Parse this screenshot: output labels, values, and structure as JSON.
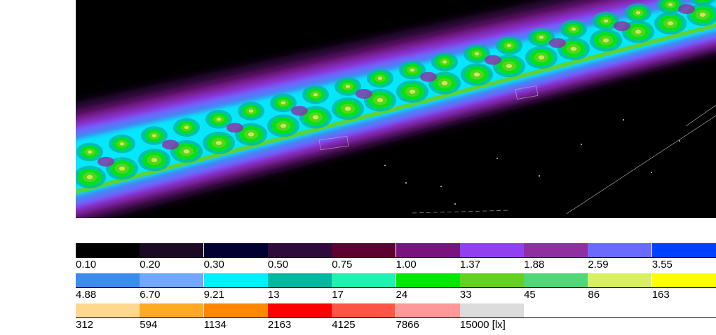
{
  "colors": {
    "background": "#000000",
    "page": "#ffffff"
  },
  "chart_data": {
    "type": "heatmap",
    "title": "",
    "unit": "lx",
    "legend": [
      {
        "label": "0.10",
        "value": 0.1,
        "color": "#000000"
      },
      {
        "label": "0.20",
        "value": 0.2,
        "color": "#1c0a24"
      },
      {
        "label": "0.30",
        "value": 0.3,
        "color": "#000030"
      },
      {
        "label": "0.50",
        "value": 0.5,
        "color": "#2f0a3c"
      },
      {
        "label": "0.75",
        "value": 0.75,
        "color": "#5e0030"
      },
      {
        "label": "1.00",
        "value": 1.0,
        "color": "#7a1280"
      },
      {
        "label": "1.37",
        "value": 1.37,
        "color": "#9040f0"
      },
      {
        "label": "1.88",
        "value": 1.88,
        "color": "#9030a0"
      },
      {
        "label": "2.59",
        "value": 2.59,
        "color": "#6a6aff"
      },
      {
        "label": "3.55",
        "value": 3.55,
        "color": "#0040ff"
      },
      {
        "label": "4.88",
        "value": 4.88,
        "color": "#3c8cf0"
      },
      {
        "label": "6.70",
        "value": 6.7,
        "color": "#70a8ff"
      },
      {
        "label": "9.21",
        "value": 9.21,
        "color": "#00f0ff"
      },
      {
        "label": "13",
        "value": 13,
        "color": "#00b8a0"
      },
      {
        "label": "17",
        "value": 17,
        "color": "#20f0b0"
      },
      {
        "label": "24",
        "value": 24,
        "color": "#00e800"
      },
      {
        "label": "33",
        "value": 33,
        "color": "#66d020"
      },
      {
        "label": "45",
        "value": 45,
        "color": "#50d878"
      },
      {
        "label": "86",
        "value": 86,
        "color": "#d8f060"
      },
      {
        "label": "163",
        "value": 163,
        "color": "#ffff00"
      },
      {
        "label": "312",
        "value": 312,
        "color": "#ffd890"
      },
      {
        "label": "594",
        "value": 594,
        "color": "#ffaa22"
      },
      {
        "label": "1134",
        "value": 1134,
        "color": "#ff8800"
      },
      {
        "label": "2163",
        "value": 2163,
        "color": "#ff0000"
      },
      {
        "label": "4125",
        "value": 4125,
        "color": "#ff5544"
      },
      {
        "label": "7866",
        "value": 7866,
        "color": "#ff9898"
      },
      {
        "label": "15000 [lx]",
        "value": 15000,
        "color": "#dcdcdc"
      }
    ]
  }
}
